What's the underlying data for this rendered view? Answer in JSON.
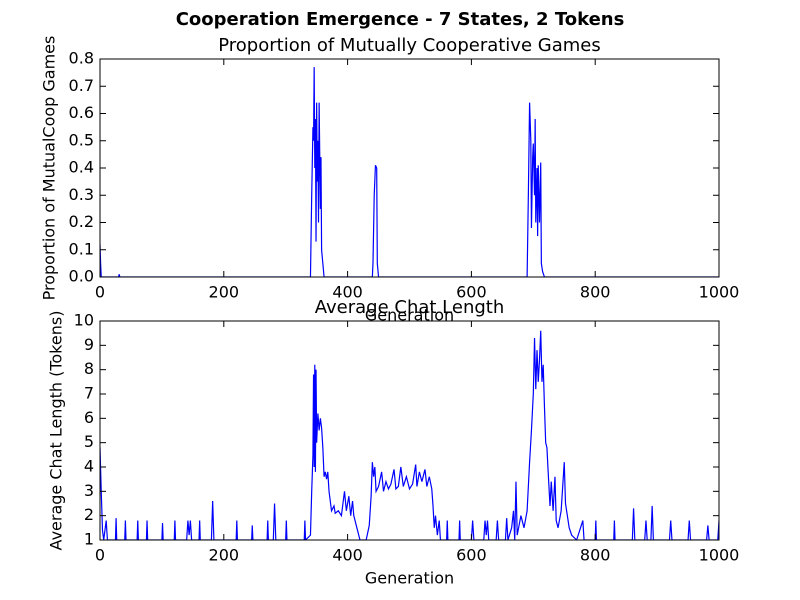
{
  "title": "Cooperation Emergence - 7 States, 2 Tokens",
  "chart_data": [
    {
      "type": "line",
      "title": "Proportion of Mutually Cooperative Games",
      "x_label": "Generation",
      "y_label": "Proportion of MutualCoop Games",
      "color": "#0000ff",
      "x": [
        0,
        1,
        2,
        4,
        30,
        31,
        32,
        100,
        340,
        342,
        344,
        345,
        346,
        347,
        348,
        349,
        350,
        351,
        352,
        353,
        354,
        356,
        357,
        358,
        360,
        362,
        440,
        441,
        443,
        445,
        447,
        448,
        450,
        690,
        692,
        694,
        696,
        697,
        699,
        700,
        702,
        703,
        704,
        706,
        707,
        708,
        710,
        712,
        713,
        715,
        718,
        1000
      ],
      "values": [
        0.12,
        0.05,
        0,
        0,
        0,
        0.01,
        0,
        0,
        0,
        0.3,
        0.55,
        0.5,
        0.77,
        0.4,
        0.58,
        0.13,
        0.64,
        0.35,
        0.5,
        0.2,
        0.64,
        0.25,
        0.44,
        0.1,
        0.05,
        0,
        0,
        0.05,
        0.3,
        0.41,
        0.4,
        0.05,
        0,
        0,
        0.3,
        0.64,
        0.5,
        0.18,
        0.44,
        0.49,
        0.3,
        0.58,
        0.2,
        0.4,
        0.15,
        0.41,
        0.2,
        0.42,
        0.05,
        0.02,
        0,
        0
      ],
      "xlim": [
        0,
        1000
      ],
      "xticks": [
        0,
        200,
        400,
        600,
        800,
        1000
      ],
      "ylim": [
        0,
        0.8
      ],
      "yticks": [
        {
          "value": 0,
          "label": "0.0"
        },
        0.1,
        0.2,
        0.3,
        0.4,
        0.5,
        0.6,
        0.7,
        0.8
      ]
    },
    {
      "type": "line",
      "title": "Average Chat Length",
      "x_label": "Generation",
      "y_label": "Average Chat Length (Tokens)",
      "color": "#0000ff",
      "x": [
        0,
        2,
        4,
        6,
        10,
        12,
        25,
        26,
        27,
        40,
        41,
        42,
        60,
        61,
        62,
        75,
        76,
        77,
        100,
        101,
        102,
        120,
        121,
        122,
        140,
        142,
        144,
        146,
        148,
        160,
        161,
        162,
        180,
        182,
        184,
        220,
        221,
        222,
        245,
        246,
        247,
        270,
        271,
        272,
        280,
        282,
        284,
        300,
        301,
        302,
        330,
        331,
        332,
        340,
        342,
        344,
        345,
        346,
        347,
        348,
        349,
        350,
        352,
        354,
        356,
        358,
        360,
        362,
        364,
        366,
        368,
        370,
        372,
        374,
        378,
        380,
        385,
        390,
        395,
        398,
        402,
        405,
        408,
        410,
        415,
        420,
        430,
        435,
        438,
        440,
        442,
        444,
        446,
        450,
        455,
        458,
        462,
        466,
        470,
        475,
        478,
        482,
        486,
        490,
        495,
        500,
        505,
        510,
        512,
        516,
        520,
        525,
        528,
        532,
        536,
        538,
        540,
        542,
        545,
        548,
        550,
        560,
        561,
        562,
        580,
        581,
        582,
        600,
        602,
        604,
        620,
        622,
        624,
        626,
        628,
        640,
        642,
        644,
        655,
        657,
        659,
        665,
        668,
        670,
        672,
        674,
        680,
        685,
        690,
        694,
        697,
        700,
        702,
        704,
        706,
        708,
        710,
        712,
        714,
        716,
        718,
        720,
        722,
        724,
        727,
        729,
        732,
        735,
        737,
        740,
        745,
        750,
        752,
        755,
        758,
        762,
        770,
        780,
        782,
        800,
        801,
        802,
        830,
        831,
        832,
        860,
        862,
        864,
        880,
        882,
        884,
        890,
        892,
        894,
        920,
        922,
        924,
        950,
        952,
        954,
        980,
        982,
        984,
        998,
        1000
      ],
      "values": [
        4.8,
        3.0,
        1.4,
        1,
        1.8,
        1,
        1,
        1.9,
        1,
        1,
        1.8,
        1,
        1,
        1.8,
        1,
        1,
        1.8,
        1,
        1,
        1.7,
        1,
        1,
        1.8,
        1,
        1,
        1.8,
        1.2,
        1.8,
        1,
        1,
        1.8,
        1,
        1,
        2.6,
        1,
        1,
        1.8,
        1,
        1,
        1.6,
        1,
        1,
        1.8,
        1,
        1,
        2.5,
        1,
        1,
        1.8,
        1,
        1,
        1.8,
        1,
        1.2,
        3,
        4.5,
        7.8,
        4,
        8.2,
        3.8,
        8,
        5,
        6.2,
        5.5,
        6,
        5.6,
        4.8,
        3.6,
        3.8,
        3.5,
        3.8,
        3,
        2.6,
        2.2,
        2.4,
        2.1,
        2.2,
        2,
        3,
        2.2,
        2.8,
        2,
        2.6,
        2,
        1.5,
        1,
        1,
        1.6,
        2.8,
        4.2,
        3.6,
        4,
        3,
        3.2,
        3.8,
        3,
        3.4,
        3.1,
        3.3,
        3.9,
        3.1,
        3.2,
        4,
        3.2,
        3.6,
        3.1,
        3.3,
        4.1,
        3.2,
        3.8,
        3.4,
        3.9,
        3.2,
        3.6,
        3.1,
        2.4,
        1.5,
        2,
        1.2,
        1.8,
        1,
        1,
        1.8,
        1,
        1,
        1.8,
        1,
        1,
        1.8,
        1,
        1,
        1.8,
        1.2,
        1.8,
        1,
        1,
        1.8,
        1,
        1,
        1.9,
        1,
        1.5,
        2.2,
        1,
        3.4,
        1.2,
        2,
        1.5,
        2.2,
        4.2,
        5.5,
        7,
        9.3,
        7.2,
        8.8,
        7.5,
        8.4,
        9.6,
        7.5,
        8.2,
        6.5,
        5,
        4.8,
        3.8,
        2.4,
        3.4,
        2.2,
        3.6,
        1.8,
        1.5,
        2.2,
        4.2,
        2.5,
        2,
        1.5,
        1.2,
        1,
        1.8,
        1,
        1,
        1.8,
        1,
        1,
        1.8,
        1,
        1,
        2.3,
        1,
        1,
        1.8,
        1,
        1,
        2.4,
        1,
        1,
        1.8,
        1,
        1,
        1.8,
        1,
        1,
        1.6,
        1,
        1,
        1.8
      ],
      "xlim": [
        0,
        1000
      ],
      "xticks": [
        0,
        200,
        400,
        600,
        800,
        1000
      ],
      "ylim": [
        1,
        10
      ],
      "yticks": [
        1,
        2,
        3,
        4,
        5,
        6,
        7,
        8,
        9,
        10
      ]
    }
  ]
}
